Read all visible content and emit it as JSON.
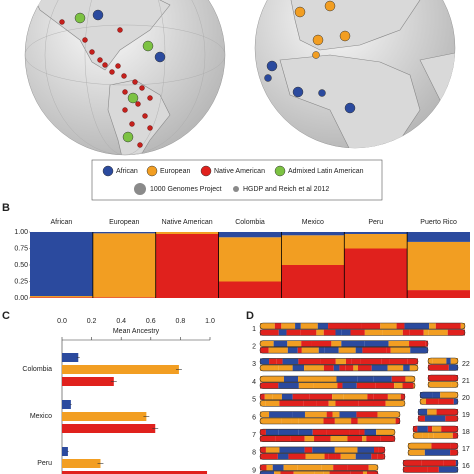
{
  "map_legend": {
    "ancestry": [
      {
        "label": "African",
        "color": "#2b4a9e"
      },
      {
        "label": "European",
        "color": "#f29e22"
      },
      {
        "label": "Native American",
        "color": "#e0211d"
      },
      {
        "label": "Admixed Latin American",
        "color": "#7cc242"
      }
    ],
    "sources": [
      "1000 Genomes Project",
      "HGDP and Reich et al 2012"
    ]
  },
  "panel_labels": [
    "B",
    "C",
    "D"
  ],
  "chart_data": [
    {
      "type": "bar",
      "stacked": true,
      "categories": [
        "African",
        "European",
        "Native American",
        "Colombia",
        "Mexico",
        "Peru",
        "Puerto Rico"
      ],
      "series": [
        {
          "name": "Native American",
          "color": "#e0211d",
          "values": [
            0.01,
            0.01,
            0.97,
            0.25,
            0.5,
            0.75,
            0.12
          ]
        },
        {
          "name": "European",
          "color": "#f29e22",
          "values": [
            0.02,
            0.97,
            0.03,
            0.67,
            0.45,
            0.22,
            0.73
          ]
        },
        {
          "name": "African",
          "color": "#2b4a9e",
          "values": [
            0.97,
            0.02,
            0,
            0.08,
            0.05,
            0.03,
            0.15
          ]
        }
      ],
      "ylim": [
        0,
        1
      ],
      "yticks": [
        {
          "value": 0,
          "label": "0.00"
        },
        {
          "value": 0.25,
          "label": "0.25"
        },
        {
          "value": 0.5,
          "label": "0.50"
        },
        {
          "value": 0.75,
          "label": "0.75"
        },
        {
          "value": 1,
          "label": "1.00"
        }
      ]
    },
    {
      "type": "barh",
      "xlabel": "Mean Ancestry",
      "categories": [
        "Colombia",
        "Mexico",
        "Peru"
      ],
      "series": [
        {
          "name": "African",
          "color": "#2b4a9e",
          "values": [
            0.11,
            0.06,
            0.04
          ],
          "errors": [
            0.01,
            0.005,
            0.005
          ]
        },
        {
          "name": "European",
          "color": "#f29e22",
          "values": [
            0.79,
            0.57,
            0.26
          ],
          "errors": [
            0.02,
            0.02,
            0.02
          ]
        },
        {
          "name": "Native American",
          "color": "#e0211d",
          "values": [
            0.35,
            0.63,
            0.98
          ],
          "errors": [
            0.02,
            0.02,
            0.01
          ]
        }
      ],
      "xlim": [
        0,
        1
      ],
      "xticks": [
        {
          "value": 0,
          "label": "0.0"
        },
        {
          "value": 0.2,
          "label": "0.2"
        },
        {
          "value": 0.4,
          "label": "0.4"
        },
        {
          "value": 0.6,
          "label": "0.6"
        },
        {
          "value": 0.8,
          "label": "0.8"
        },
        {
          "value": 1,
          "label": "1.0"
        }
      ]
    }
  ],
  "chromosomes": {
    "left": [
      "1",
      "2",
      "3",
      "4",
      "5",
      "6",
      "7",
      "8",
      "9"
    ],
    "right": [
      "22",
      "21",
      "20",
      "19",
      "18",
      "17",
      "16"
    ]
  }
}
